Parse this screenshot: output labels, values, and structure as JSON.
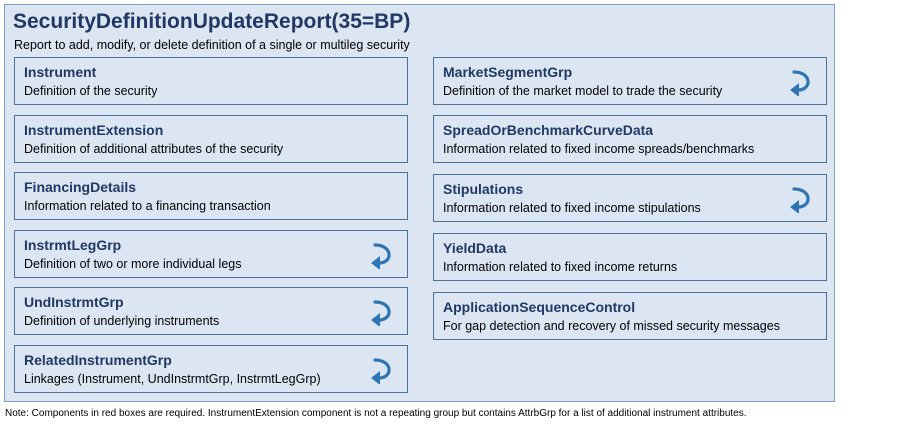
{
  "diagram": {
    "title": "SecurityDefinitionUpdateReport(35=BP)",
    "subtitle": "Report to add, modify, or delete definition of a single or multileg security",
    "left_components": [
      {
        "name": "Instrument",
        "description": "Definition of the security",
        "repeating": false
      },
      {
        "name": "InstrumentExtension",
        "description": "Definition of additional attributes of the security",
        "repeating": false
      },
      {
        "name": "FinancingDetails",
        "description": "Information related to a financing transaction",
        "repeating": false
      },
      {
        "name": "InstrmtLegGrp",
        "description": "Definition of two or more individual legs",
        "repeating": true
      },
      {
        "name": "UndInstrmtGrp",
        "description": "Definition of underlying instruments",
        "repeating": true
      },
      {
        "name": "RelatedInstrumentGrp",
        "description": "Linkages (Instrument, UndInstrmtGrp, InstrmtLegGrp)",
        "repeating": true
      }
    ],
    "right_components": [
      {
        "name": "MarketSegmentGrp",
        "description": "Definition of the market model to trade the security",
        "repeating": true
      },
      {
        "name": "SpreadOrBenchmarkCurveData",
        "description": "Information related to fixed income spreads/benchmarks",
        "repeating": false
      },
      {
        "name": "Stipulations",
        "description": "Information related to fixed income stipulations",
        "repeating": true
      },
      {
        "name": "YieldData",
        "description": "Information related to fixed income returns",
        "repeating": false
      },
      {
        "name": "ApplicationSequenceControl",
        "description": "For gap detection and recovery of missed security messages",
        "repeating": false
      }
    ],
    "note": "Note: Components in red boxes are required. InstrumentExtension component is not a repeating group but contains AttrbGrp for a list of additional instrument attributes.",
    "colors": {
      "panel_fill": "#dce6f2",
      "box_border": "#4a6f98",
      "title_text": "#1f3864",
      "repeat_icon": "#2e75b6"
    },
    "icons": {
      "repeating_group": "repeat-arrow-icon"
    }
  }
}
